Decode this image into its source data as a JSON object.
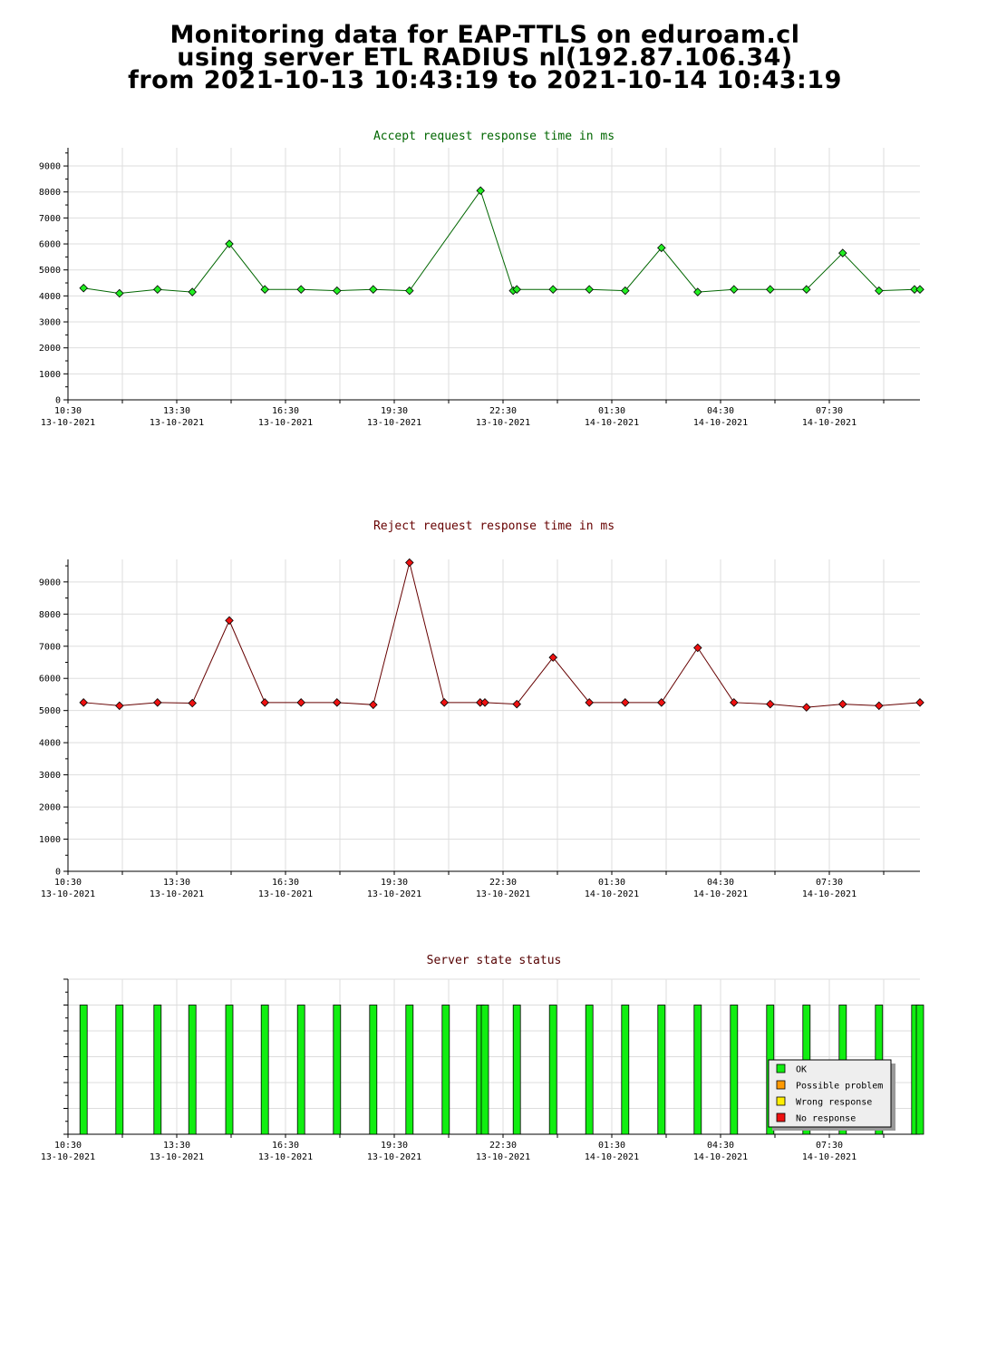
{
  "page_title": {
    "line1": "Monitoring data for EAP-TTLS on eduroam.cl",
    "line2": "using server ETL RADIUS nl(192.87.106.34)",
    "line3": "from 2021-10-13 10:43:19 to 2021-10-14 10:43:19"
  },
  "colors": {
    "accept_line": "#006600",
    "accept_marker": "#22ee22",
    "reject_line": "#660000",
    "reject_marker": "#ee1111",
    "ok": "#11ee11",
    "possible_problem": "#ff9900",
    "wrong_response": "#ffee00",
    "no_response": "#ee1111",
    "grid": "#dddddd"
  },
  "time_axis": {
    "start_hour": 10.5,
    "end_hour": 34.0,
    "ticks": [
      {
        "time": "10:30",
        "date": "13-10-2021",
        "hour": 10.5
      },
      {
        "time": "13:30",
        "date": "13-10-2021",
        "hour": 13.5
      },
      {
        "time": "16:30",
        "date": "13-10-2021",
        "hour": 16.5
      },
      {
        "time": "19:30",
        "date": "13-10-2021",
        "hour": 19.5
      },
      {
        "time": "22:30",
        "date": "13-10-2021",
        "hour": 22.5
      },
      {
        "time": "01:30",
        "date": "14-10-2021",
        "hour": 25.5
      },
      {
        "time": "04:30",
        "date": "14-10-2021",
        "hour": 28.5
      },
      {
        "time": "07:30",
        "date": "14-10-2021",
        "hour": 31.5
      }
    ]
  },
  "chart_data": [
    {
      "type": "line",
      "title": "Accept request response time in ms",
      "xlabel": "",
      "ylabel": "",
      "ylim": [
        0,
        9700
      ],
      "yticks": [
        0,
        1000,
        2000,
        3000,
        4000,
        5000,
        6000,
        7000,
        8000,
        9000
      ],
      "series": [
        {
          "x": [
            10.93,
            11.92,
            12.97,
            13.93,
            14.95,
            15.93,
            16.93,
            17.92,
            18.92,
            19.92,
            21.88,
            22.78,
            22.88,
            23.88,
            24.88,
            25.87,
            26.87,
            27.87,
            28.87,
            29.87,
            30.87,
            31.87,
            32.87,
            33.85,
            34.0
          ],
          "values": [
            4300,
            4100,
            4250,
            4150,
            6000,
            4250,
            4250,
            4200,
            4250,
            4200,
            8050,
            4200,
            4250,
            4250,
            4250,
            4200,
            5850,
            4150,
            4250,
            4250,
            4250,
            5650,
            4200,
            4250,
            4250
          ]
        }
      ]
    },
    {
      "type": "line",
      "title": "Reject request response time in ms",
      "xlabel": "",
      "ylabel": "",
      "ylim": [
        0,
        9700
      ],
      "yticks": [
        0,
        1000,
        2000,
        3000,
        4000,
        5000,
        6000,
        7000,
        8000,
        9000
      ],
      "series": [
        {
          "x": [
            10.93,
            11.92,
            12.97,
            13.93,
            14.95,
            15.93,
            16.93,
            17.92,
            18.92,
            19.92,
            20.88,
            21.87,
            22.0,
            22.88,
            23.88,
            24.88,
            25.87,
            26.87,
            27.87,
            28.87,
            29.87,
            30.87,
            31.87,
            32.87,
            34.0
          ],
          "values": [
            5250,
            5150,
            5250,
            5230,
            7800,
            5250,
            5250,
            5250,
            5180,
            9600,
            5250,
            5250,
            5250,
            5200,
            6650,
            5250,
            5250,
            5250,
            6950,
            5250,
            5200,
            5100,
            5200,
            5150,
            5250
          ]
        }
      ]
    },
    {
      "type": "bar",
      "title": "Server state status",
      "xlabel": "",
      "ylabel": "",
      "ylim": [
        0,
        1.2
      ],
      "x": [
        10.93,
        11.92,
        12.97,
        13.93,
        14.95,
        15.93,
        16.93,
        17.92,
        18.92,
        19.92,
        20.92,
        21.87,
        22.0,
        22.88,
        23.88,
        24.88,
        25.87,
        26.87,
        27.87,
        28.87,
        29.87,
        30.87,
        31.87,
        32.87,
        33.87,
        34.0
      ],
      "status": [
        "OK",
        "OK",
        "OK",
        "OK",
        "OK",
        "OK",
        "OK",
        "OK",
        "OK",
        "OK",
        "OK",
        "OK",
        "OK",
        "OK",
        "OK",
        "OK",
        "OK",
        "OK",
        "OK",
        "OK",
        "OK",
        "OK",
        "OK",
        "OK",
        "OK",
        "OK"
      ],
      "values": [
        1,
        1,
        1,
        1,
        1,
        1,
        1,
        1,
        1,
        1,
        1,
        1,
        1,
        1,
        1,
        1,
        1,
        1,
        1,
        1,
        1,
        1,
        1,
        1,
        1,
        1
      ],
      "legend": [
        {
          "label": "OK",
          "color": "#11ee11"
        },
        {
          "label": "Possible problem",
          "color": "#ff9900"
        },
        {
          "label": "Wrong response",
          "color": "#ffee00"
        },
        {
          "label": "No response",
          "color": "#ee1111"
        }
      ],
      "legend_position": "bottom-right"
    }
  ]
}
